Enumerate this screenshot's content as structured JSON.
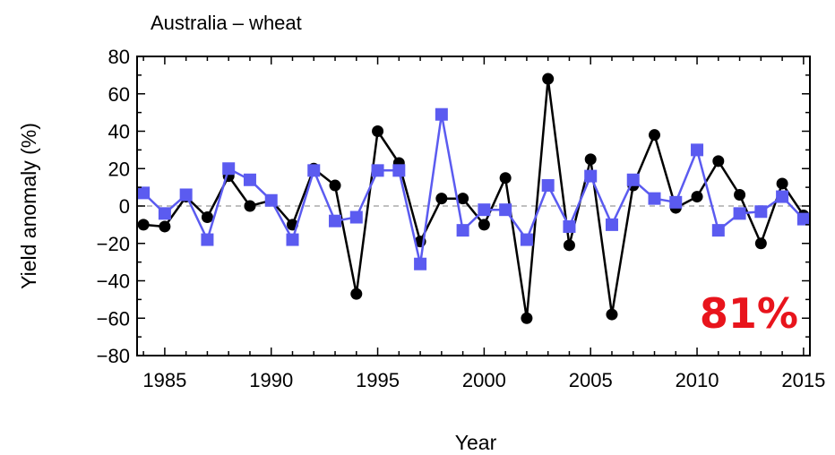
{
  "chart_data": {
    "type": "line",
    "title": "Australia – wheat",
    "xlabel": "Year",
    "ylabel": "Yield anomaly (%)",
    "xlim": [
      1983.7,
      2015.3
    ],
    "ylim": [
      -80,
      80
    ],
    "x_ticks": [
      1985,
      1990,
      1995,
      2000,
      2005,
      2010,
      2015
    ],
    "y_ticks": [
      80,
      60,
      40,
      20,
      0,
      -20,
      -40,
      -60,
      -80
    ],
    "zero_line": {
      "style": "dashed",
      "color": "#aaaaaa"
    },
    "annotation": {
      "text": "81%",
      "color": "#e8141c",
      "position": "bottom-right"
    },
    "series": [
      {
        "marker": "circle",
        "color": "#000000",
        "x": [
          1984,
          1985,
          1986,
          1987,
          1988,
          1989,
          1990,
          1991,
          1992,
          1993,
          1994,
          1995,
          1996,
          1997,
          1998,
          1999,
          2000,
          2001,
          2002,
          2003,
          2004,
          2005,
          2006,
          2007,
          2008,
          2009,
          2010,
          2011,
          2012,
          2013,
          2014,
          2015
        ],
        "values": [
          -10,
          -11,
          5,
          -6,
          16,
          0,
          3,
          -10,
          20,
          11,
          -47,
          40,
          23,
          -19,
          4,
          4,
          -10,
          15,
          -60,
          68,
          -21,
          25,
          -58,
          11,
          38,
          -1,
          5,
          24,
          6,
          -20,
          12,
          -5
        ]
      },
      {
        "marker": "square",
        "color": "#5b5bf0",
        "x": [
          1984,
          1985,
          1986,
          1987,
          1988,
          1989,
          1990,
          1991,
          1992,
          1993,
          1994,
          1995,
          1996,
          1997,
          1998,
          1999,
          2000,
          2001,
          2002,
          2003,
          2004,
          2005,
          2006,
          2007,
          2008,
          2009,
          2010,
          2011,
          2012,
          2013,
          2014,
          2015
        ],
        "values": [
          7,
          -4,
          6,
          -18,
          20,
          14,
          3,
          -18,
          19,
          -8,
          -6,
          19,
          19,
          -31,
          49,
          -13,
          -2,
          -2,
          -18,
          11,
          -11,
          16,
          -10,
          14,
          4,
          2,
          30,
          -13,
          -4,
          -3,
          5,
          -7
        ]
      }
    ]
  }
}
